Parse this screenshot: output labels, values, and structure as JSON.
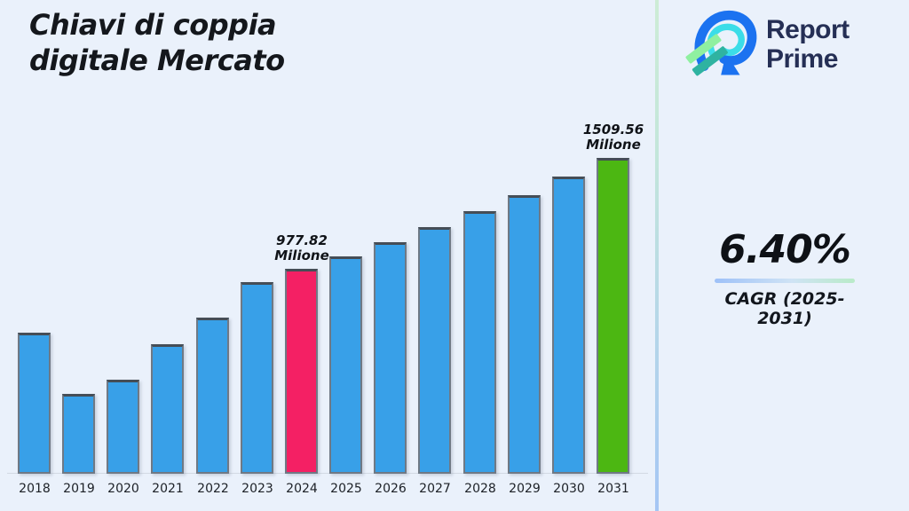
{
  "title": {
    "line1": "Chiavi di coppia",
    "line2": "digitale Mercato"
  },
  "logo": {
    "name": "Report Prime",
    "line1": "Report",
    "line2": "Prime",
    "colors": {
      "blue": "#1b72f0",
      "cyan": "#3bdde8",
      "light_green": "#8ff0a0",
      "teal": "#2fb3a1",
      "text_navy": "#252f55"
    }
  },
  "cagr": {
    "value": "6.40%",
    "label": "CAGR (2025-2031)"
  },
  "theme": {
    "background": "#eaf1fb",
    "divider_top_color": "#cdecd6",
    "divider_bottom_color": "#a5c6f4",
    "underline_gradient": [
      "#9ec1f8",
      "#b9ebc8"
    ]
  },
  "chart_data": {
    "type": "bar",
    "title": "Chiavi di coppia digitale Mercato",
    "xlabel": "",
    "ylabel": "",
    "unit": "Milione",
    "ylim": [
      0,
      1600
    ],
    "grid": false,
    "categories": [
      "2018",
      "2019",
      "2020",
      "2021",
      "2022",
      "2023",
      "2024",
      "2025",
      "2026",
      "2027",
      "2028",
      "2029",
      "2030",
      "2031"
    ],
    "values": [
      675,
      380,
      450,
      620,
      745,
      915,
      977.82,
      1040.3,
      1106.9,
      1177.7,
      1253.1,
      1333.3,
      1418.6,
      1509.56
    ],
    "annotations": [
      {
        "category": "2024",
        "line1": "977.82",
        "line2": "Milione"
      },
      {
        "category": "2031",
        "line1": "1509.56",
        "line2": "Milione"
      }
    ],
    "colors": {
      "default": "#38a0e8",
      "highlights": {
        "2024": "#f42064",
        "2031": "#4cb712"
      }
    }
  }
}
